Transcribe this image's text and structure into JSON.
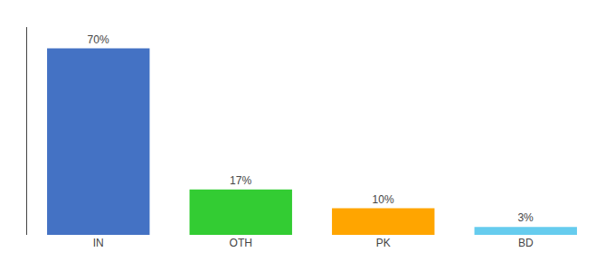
{
  "chart_data": {
    "type": "bar",
    "categories": [
      "IN",
      "OTH",
      "PK",
      "BD"
    ],
    "values": [
      70,
      17,
      10,
      3
    ],
    "value_labels": [
      "70%",
      "17%",
      "10%",
      "3%"
    ],
    "colors": [
      "#4472C4",
      "#33CC33",
      "#FFA500",
      "#66CCEE"
    ],
    "ylim": [
      0,
      78
    ],
    "data_labels": true,
    "tick_labels": "x",
    "grid": false
  }
}
